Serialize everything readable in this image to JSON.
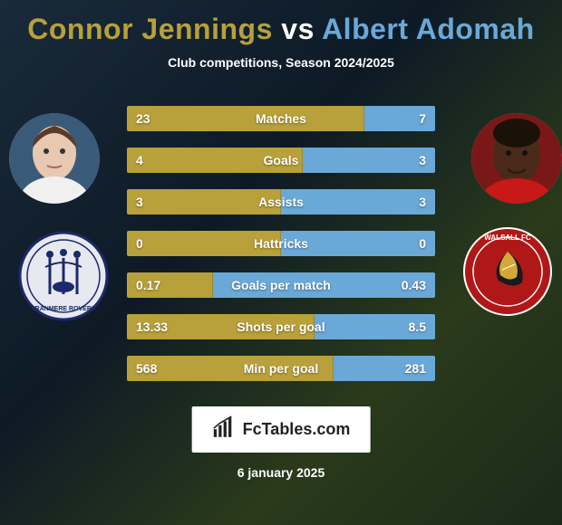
{
  "title": {
    "player1_name": "Connor Jennings",
    "vs": "vs",
    "player2_name": "Albert Adomah",
    "player1_color": "#b8a03a",
    "player2_color": "#6aa8d8",
    "subtitle": "Club competitions, Season 2024/2025"
  },
  "colors": {
    "bar_left": "#b8a03a",
    "bar_right": "#6aa8d8",
    "text": "#ffffff"
  },
  "stats": [
    {
      "label": "Matches",
      "left_val": "23",
      "right_val": "7",
      "left_pct": 77,
      "right_pct": 23
    },
    {
      "label": "Goals",
      "left_val": "4",
      "right_val": "3",
      "left_pct": 57,
      "right_pct": 43
    },
    {
      "label": "Assists",
      "left_val": "3",
      "right_val": "3",
      "left_pct": 50,
      "right_pct": 50
    },
    {
      "label": "Hattricks",
      "left_val": "0",
      "right_val": "0",
      "left_pct": 50,
      "right_pct": 50
    },
    {
      "label": "Goals per match",
      "left_val": "0.17",
      "right_val": "0.43",
      "left_pct": 28,
      "right_pct": 72
    },
    {
      "label": "Shots per goal",
      "left_val": "13.33",
      "right_val": "8.5",
      "left_pct": 61,
      "right_pct": 39
    },
    {
      "label": "Min per goal",
      "left_val": "568",
      "right_val": "281",
      "left_pct": 67,
      "right_pct": 33
    }
  ],
  "logo_text": "FcTables.com",
  "date_text": "6 january 2025",
  "crests": {
    "left_name": "Tranmere Rovers",
    "right_name": "Walsall FC"
  }
}
